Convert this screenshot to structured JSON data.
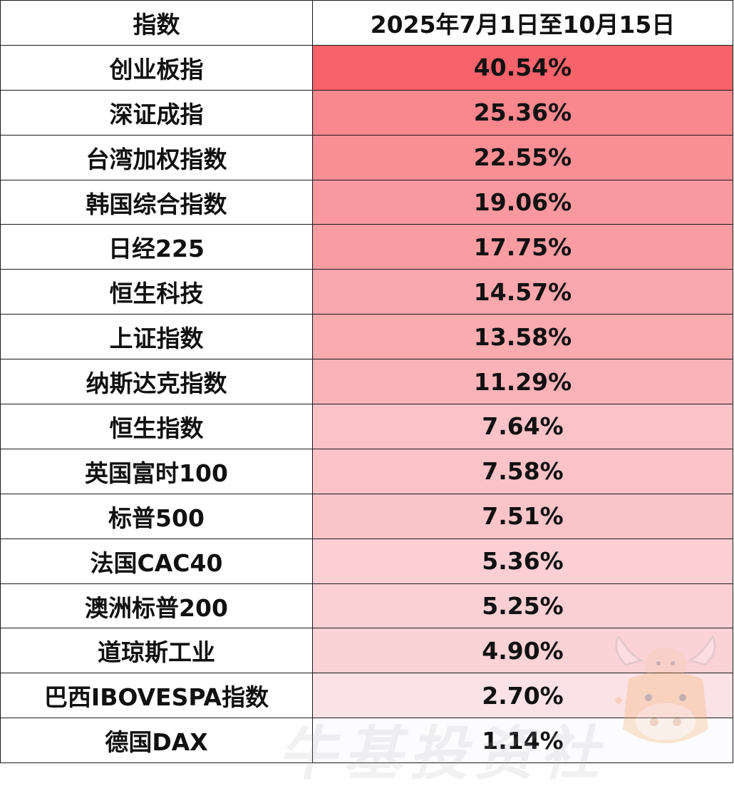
{
  "table": {
    "headers": [
      "指数",
      "2025年7月1日至10月15日"
    ],
    "rows": [
      {
        "name": "创业板指",
        "value": "40.54%",
        "change": 40.54
      },
      {
        "name": "深证成指",
        "value": "25.36%",
        "change": 25.36
      },
      {
        "name": "台湾加权指数",
        "value": "22.55%",
        "change": 22.55
      },
      {
        "name": "韩国综合指数",
        "value": "19.06%",
        "change": 19.06
      },
      {
        "name": "日经225",
        "value": "17.75%",
        "change": 17.75
      },
      {
        "name": "恒生科技",
        "value": "14.57%",
        "change": 14.57
      },
      {
        "name": "上证指数",
        "value": "13.58%",
        "change": 13.58
      },
      {
        "name": "纳斯达克指数",
        "value": "11.29%",
        "change": 11.29
      },
      {
        "name": "恒生指数",
        "value": "7.64%",
        "change": 7.64
      },
      {
        "name": "英国富时100",
        "value": "7.58%",
        "change": 7.58
      },
      {
        "name": "标普500",
        "value": "7.51%",
        "change": 7.51
      },
      {
        "name": "法国CAC40",
        "value": "5.36%",
        "change": 5.36
      },
      {
        "name": "澳洲标普200",
        "value": "5.25%",
        "change": 5.25
      },
      {
        "name": "道琼斯工业",
        "value": "4.90%",
        "change": 4.9
      },
      {
        "name": "巴西IBOVESPA指数",
        "value": "2.70%",
        "change": 2.7
      },
      {
        "name": "德国DAX",
        "value": "1.14%",
        "change": 1.14
      }
    ]
  },
  "heat_colors": {
    "max": "#f8636b",
    "min": "#fcfcff",
    "border": "#1a1a1a"
  },
  "watermark": {
    "text": "牛基投资社",
    "icon": "bull-mascot-logo"
  }
}
